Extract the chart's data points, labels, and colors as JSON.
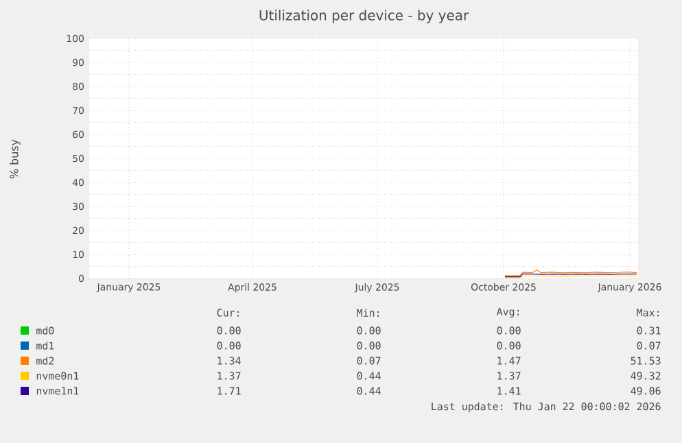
{
  "chart_data": {
    "type": "line",
    "title": "Utilization per device - by year",
    "ylabel": "% busy",
    "xlim": [
      "2024-12-18",
      "2026-01-22"
    ],
    "xticks": [
      {
        "value": "2025-01-16",
        "label": "January 2025"
      },
      {
        "value": "2025-04-16",
        "label": "April 2025"
      },
      {
        "value": "2025-07-16",
        "label": "July 2025"
      },
      {
        "value": "2025-10-16",
        "label": "October 2025"
      },
      {
        "value": "2026-01-16",
        "label": "January 2026"
      }
    ],
    "ylim": [
      0,
      100
    ],
    "yticks": [
      0,
      10,
      20,
      30,
      40,
      50,
      60,
      70,
      80,
      90,
      100
    ],
    "grid": true,
    "legend": "bottom",
    "series": [
      {
        "name": "md0",
        "color": "#00cc00"
      },
      {
        "name": "md1",
        "color": "#0066b3"
      },
      {
        "name": "md2",
        "color": "#ff8000",
        "x": [
          "2025-10-17",
          "2025-10-28",
          "2025-10-30",
          "2025-11-06",
          "2025-11-09",
          "2025-11-12",
          "2025-11-20",
          "2025-11-28",
          "2025-12-06",
          "2025-12-14",
          "2025-12-22",
          "2025-12-30",
          "2026-01-07",
          "2026-01-14",
          "2026-01-21"
        ],
        "values": [
          1.2,
          1.2,
          2.6,
          2.4,
          3.5,
          2.4,
          2.6,
          2.3,
          2.5,
          2.3,
          2.6,
          2.4,
          2.5,
          2.7,
          2.4
        ]
      },
      {
        "name": "nvme0n1",
        "color": "#ffcc00",
        "x": [
          "2025-10-17",
          "2025-10-28",
          "2025-10-30",
          "2025-11-12",
          "2025-11-28",
          "2025-12-14",
          "2025-12-30",
          "2026-01-14",
          "2026-01-21"
        ],
        "values": [
          0.3,
          0.3,
          1.0,
          1.0,
          0.9,
          1.0,
          1.0,
          1.0,
          1.0
        ]
      },
      {
        "name": "nvme1n1",
        "color": "#330099",
        "x": [
          "2025-10-17",
          "2025-10-28",
          "2025-10-30",
          "2025-11-06",
          "2025-11-14",
          "2025-11-22",
          "2025-11-30",
          "2025-12-08",
          "2025-12-16",
          "2025-12-24",
          "2026-01-01",
          "2026-01-09",
          "2026-01-16",
          "2026-01-21"
        ],
        "values": [
          0.7,
          0.7,
          1.9,
          1.8,
          1.7,
          1.8,
          1.7,
          1.8,
          1.7,
          1.8,
          1.7,
          1.8,
          1.8,
          1.8
        ]
      }
    ],
    "annotations": [
      "Cur:",
      "Min:",
      "Avg:",
      "Max:",
      "0.00",
      "0.00",
      "0.00",
      "0.31",
      "0.00",
      "0.00",
      "0.00",
      "0.07",
      "1.34",
      "0.07",
      "1.47",
      "51.53",
      "1.37",
      "0.44",
      "1.37",
      "49.32",
      "1.71",
      "0.44",
      "1.41",
      "49.06",
      "Last update: Thu Jan 22 00:00:02 2026"
    ]
  }
}
